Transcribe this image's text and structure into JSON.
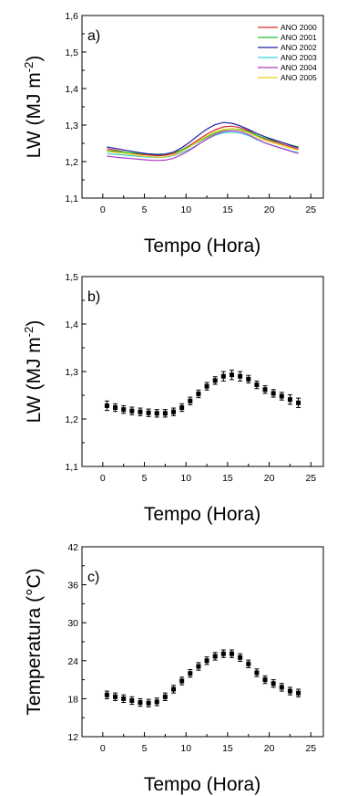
{
  "chart_data": [
    {
      "type": "line",
      "panel_label": "a)",
      "xlabel": "Tempo (Hora)",
      "ylabel": "LW (MJ m",
      "ylabel_sup": "-2",
      "ylabel_end": ")",
      "xlim": [
        -2.5,
        26.5
      ],
      "ylim": [
        1.1,
        1.6
      ],
      "xticks": [
        0,
        5,
        10,
        15,
        20,
        25
      ],
      "yticks": [
        1.1,
        1.2,
        1.3,
        1.4,
        1.5,
        1.6
      ],
      "ytick_labels": [
        "1,1",
        "1,2",
        "1,3",
        "1,4",
        "1,5",
        "1,6"
      ],
      "legend_position": "top-right",
      "x": [
        0.5,
        1.5,
        2.5,
        3.5,
        4.5,
        5.5,
        6.5,
        7.5,
        8.5,
        9.5,
        10.5,
        11.5,
        12.5,
        13.5,
        14.5,
        15.5,
        16.5,
        17.5,
        18.5,
        19.5,
        20.5,
        21.5,
        22.5,
        23.5
      ],
      "series": [
        {
          "name": "ANO 2000",
          "color": "#d62728",
          "values": [
            1.235,
            1.231,
            1.227,
            1.223,
            1.22,
            1.218,
            1.216,
            1.217,
            1.222,
            1.232,
            1.245,
            1.26,
            1.275,
            1.287,
            1.295,
            1.297,
            1.293,
            1.285,
            1.272,
            1.262,
            1.255,
            1.248,
            1.241,
            1.234
          ]
        },
        {
          "name": "ANO 2001",
          "color": "#22c02a",
          "values": [
            1.23,
            1.228,
            1.226,
            1.224,
            1.222,
            1.221,
            1.22,
            1.221,
            1.225,
            1.232,
            1.242,
            1.254,
            1.267,
            1.278,
            1.286,
            1.29,
            1.288,
            1.282,
            1.272,
            1.264,
            1.258,
            1.252,
            1.246,
            1.24
          ]
        },
        {
          "name": "ANO 2002",
          "color": "#1f1fa8",
          "values": [
            1.24,
            1.236,
            1.232,
            1.228,
            1.224,
            1.221,
            1.219,
            1.22,
            1.226,
            1.238,
            1.254,
            1.272,
            1.289,
            1.301,
            1.307,
            1.305,
            1.298,
            1.288,
            1.277,
            1.268,
            1.26,
            1.253,
            1.245,
            1.238
          ]
        },
        {
          "name": "ANO 2003",
          "color": "#3ad0e8",
          "values": [
            1.222,
            1.22,
            1.218,
            1.216,
            1.214,
            1.212,
            1.211,
            1.212,
            1.216,
            1.224,
            1.235,
            1.248,
            1.261,
            1.272,
            1.279,
            1.281,
            1.278,
            1.271,
            1.26,
            1.251,
            1.244,
            1.237,
            1.23,
            1.224
          ]
        },
        {
          "name": "ANO 2004",
          "color": "#b03ac0",
          "values": [
            1.215,
            1.212,
            1.21,
            1.208,
            1.206,
            1.204,
            1.203,
            1.204,
            1.209,
            1.219,
            1.232,
            1.247,
            1.262,
            1.274,
            1.282,
            1.285,
            1.282,
            1.274,
            1.262,
            1.251,
            1.243,
            1.236,
            1.229,
            1.222
          ]
        },
        {
          "name": "ANO 2005",
          "color": "#e8d21a",
          "values": [
            1.228,
            1.225,
            1.222,
            1.219,
            1.216,
            1.214,
            1.212,
            1.213,
            1.218,
            1.228,
            1.241,
            1.256,
            1.27,
            1.281,
            1.288,
            1.29,
            1.286,
            1.279,
            1.268,
            1.258,
            1.251,
            1.244,
            1.237,
            1.231
          ]
        }
      ]
    },
    {
      "type": "scatter",
      "panel_label": "b)",
      "xlabel": "Tempo (Hora)",
      "ylabel": "LW (MJ m",
      "ylabel_sup": "-2",
      "ylabel_end": ")",
      "xlim": [
        -2.5,
        26.5
      ],
      "ylim": [
        1.1,
        1.5
      ],
      "xticks": [
        0,
        5,
        10,
        15,
        20,
        25
      ],
      "yticks": [
        1.1,
        1.2,
        1.3,
        1.4,
        1.5
      ],
      "ytick_labels": [
        "1,1",
        "1,2",
        "1,3",
        "1,4",
        "1,5"
      ],
      "error_bars": true,
      "x": [
        0.5,
        1.5,
        2.5,
        3.5,
        4.5,
        5.5,
        6.5,
        7.5,
        8.5,
        9.5,
        10.5,
        11.5,
        12.5,
        13.5,
        14.5,
        15.5,
        16.5,
        17.5,
        18.5,
        19.5,
        20.5,
        21.5,
        22.5,
        23.5
      ],
      "values": [
        1.228,
        1.224,
        1.22,
        1.217,
        1.215,
        1.213,
        1.212,
        1.212,
        1.215,
        1.224,
        1.238,
        1.253,
        1.269,
        1.281,
        1.29,
        1.293,
        1.29,
        1.284,
        1.272,
        1.262,
        1.254,
        1.248,
        1.241,
        1.234
      ],
      "error": [
        0.01,
        0.008,
        0.008,
        0.008,
        0.008,
        0.008,
        0.008,
        0.008,
        0.008,
        0.008,
        0.008,
        0.008,
        0.008,
        0.008,
        0.01,
        0.01,
        0.01,
        0.008,
        0.008,
        0.008,
        0.008,
        0.008,
        0.01,
        0.01
      ]
    },
    {
      "type": "scatter",
      "panel_label": "c)",
      "xlabel": "Tempo (Hora)",
      "ylabel": "Temperatura (°C)",
      "xlim": [
        -2.5,
        26.5
      ],
      "ylim": [
        12,
        42
      ],
      "xticks": [
        0,
        5,
        10,
        15,
        20,
        25
      ],
      "yticks": [
        12,
        18,
        24,
        30,
        36,
        42
      ],
      "ytick_labels": [
        "12",
        "18",
        "24",
        "30",
        "36",
        "42"
      ],
      "error_bars": true,
      "x": [
        0.5,
        1.5,
        2.5,
        3.5,
        4.5,
        5.5,
        6.5,
        7.5,
        8.5,
        9.5,
        10.5,
        11.5,
        12.5,
        13.5,
        14.5,
        15.5,
        16.5,
        17.5,
        18.5,
        19.5,
        20.5,
        21.5,
        22.5,
        23.5
      ],
      "values": [
        18.6,
        18.3,
        18.0,
        17.7,
        17.4,
        17.3,
        17.5,
        18.3,
        19.5,
        20.8,
        22.0,
        23.1,
        24.0,
        24.7,
        25.1,
        25.1,
        24.5,
        23.5,
        22.1,
        21.0,
        20.4,
        19.8,
        19.2,
        18.9
      ],
      "error": [
        0.6,
        0.6,
        0.6,
        0.6,
        0.6,
        0.6,
        0.6,
        0.6,
        0.6,
        0.6,
        0.6,
        0.6,
        0.6,
        0.6,
        0.6,
        0.6,
        0.6,
        0.6,
        0.6,
        0.6,
        0.6,
        0.6,
        0.6,
        0.6
      ]
    }
  ]
}
